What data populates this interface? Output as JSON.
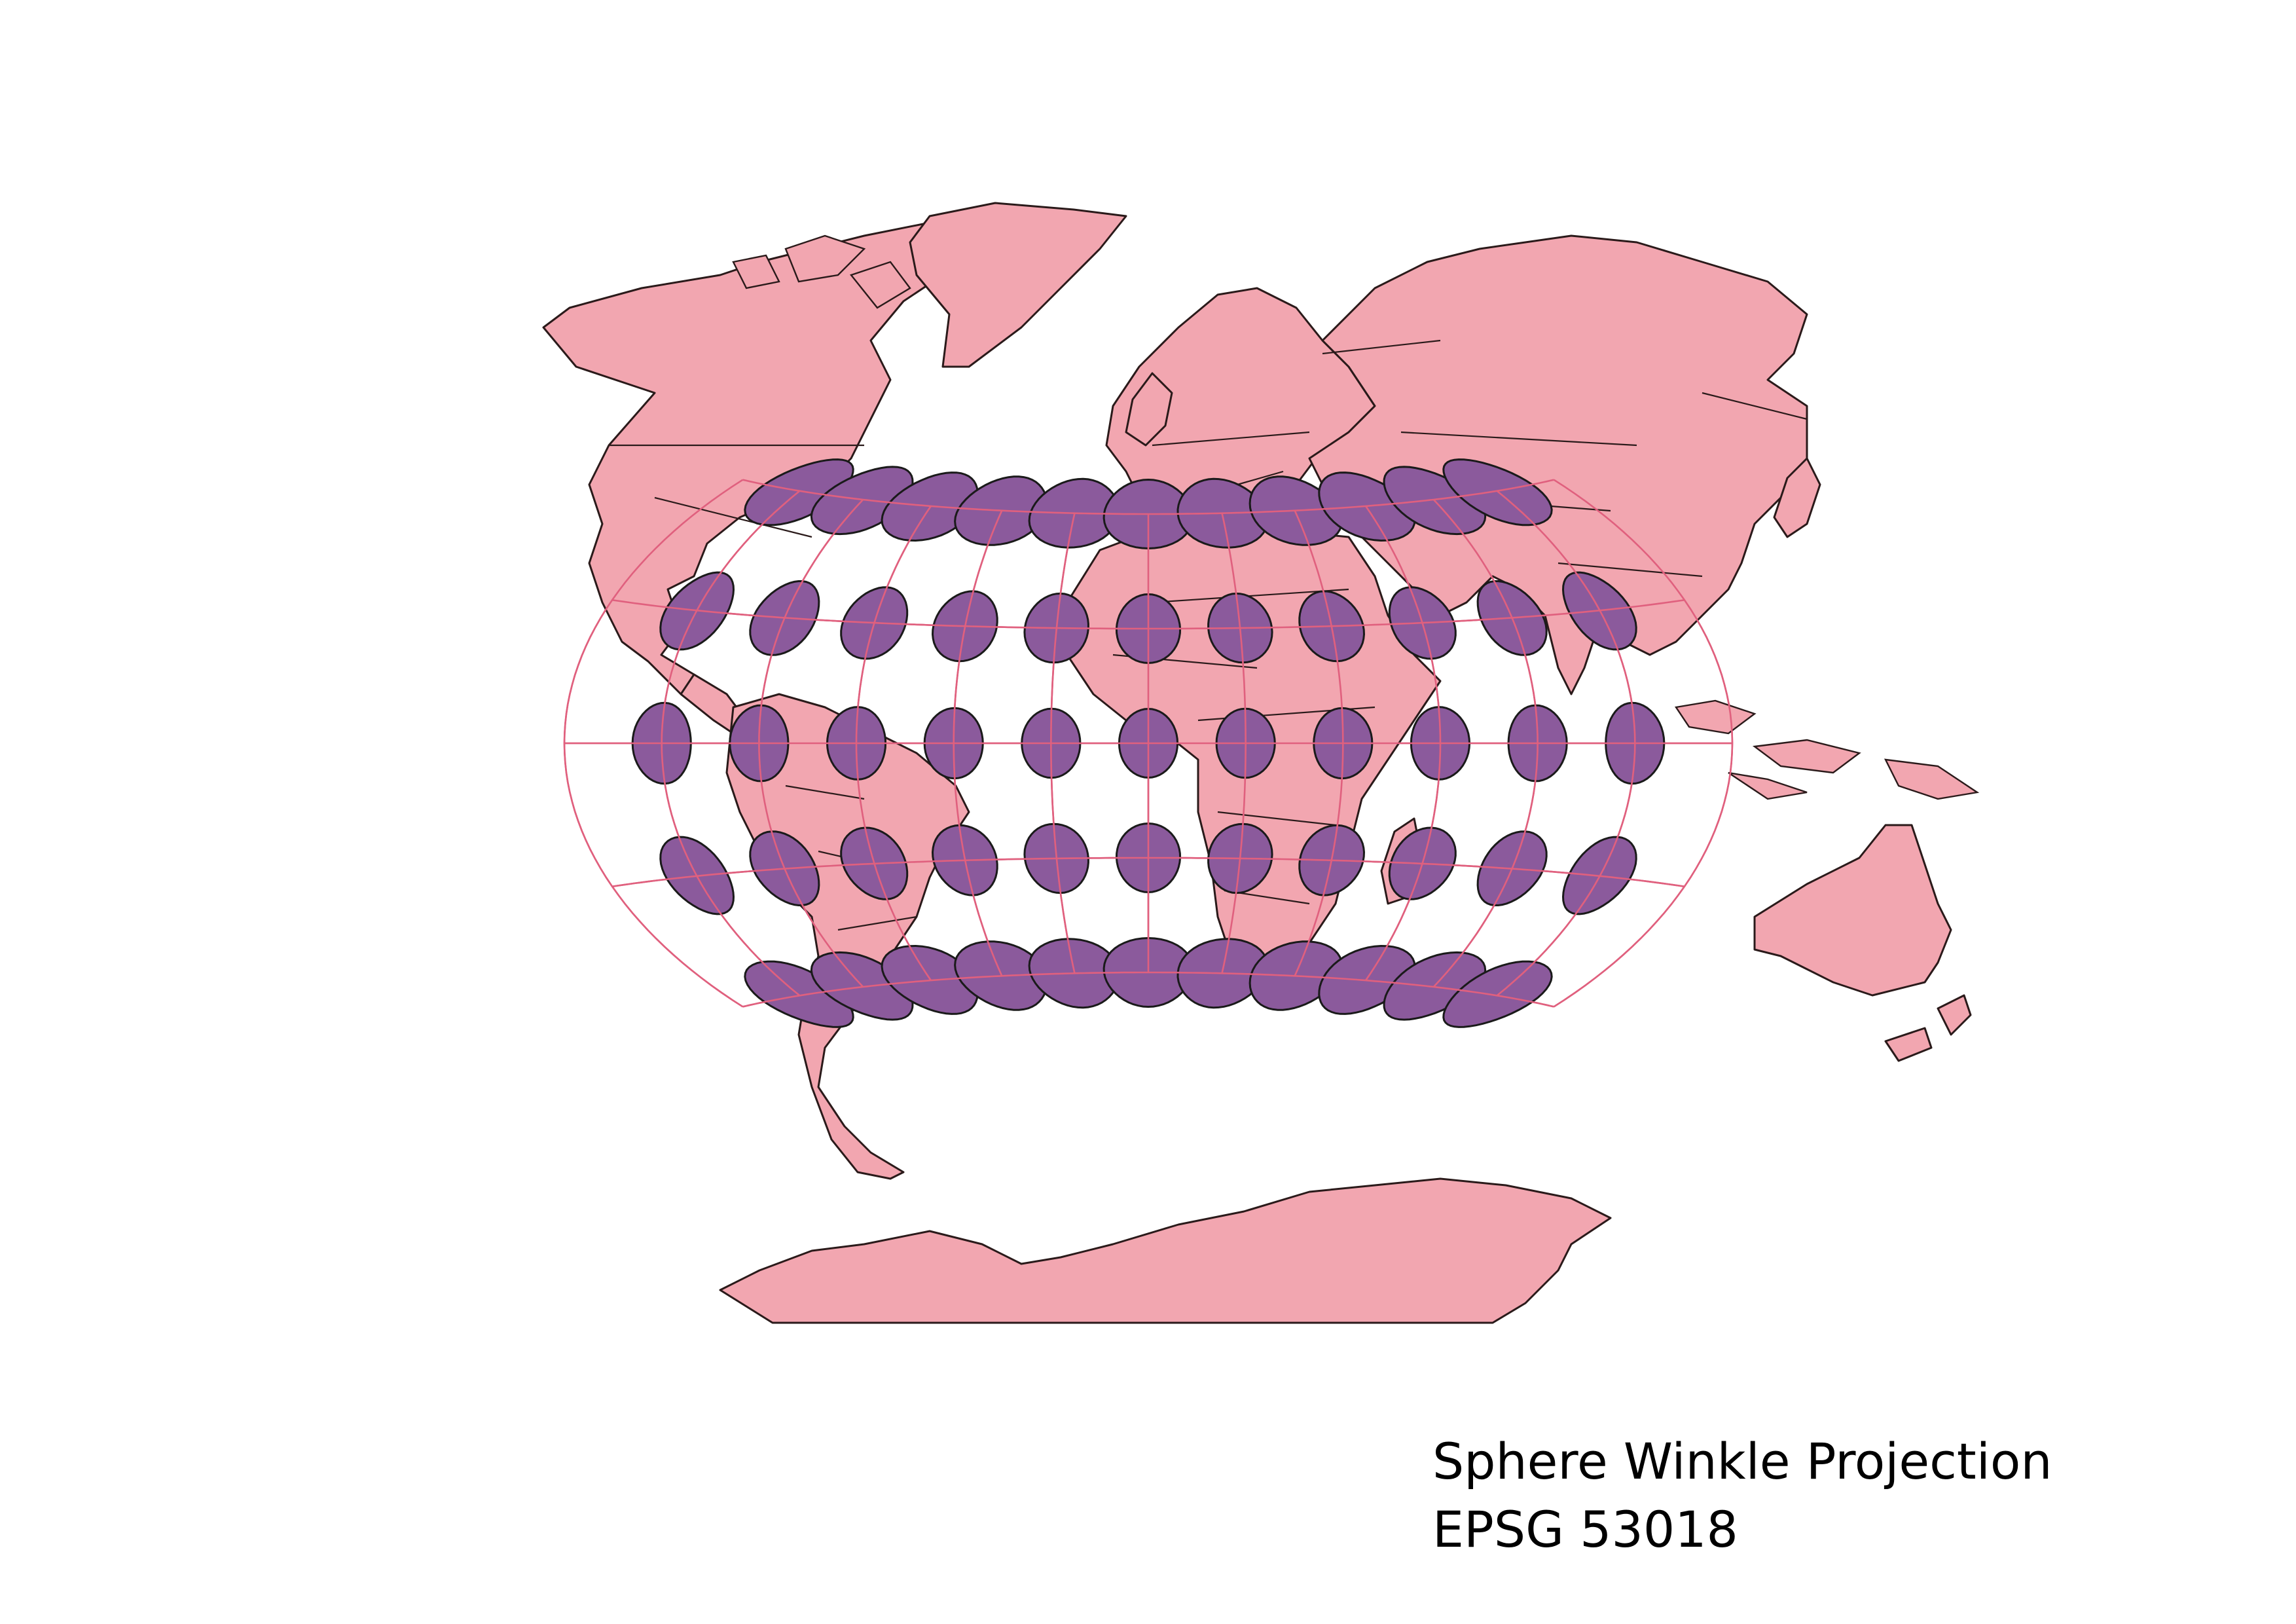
{
  "map": {
    "projection_title": "Sphere Winkle Projection",
    "epsg_label": "EPSG 53018",
    "colors": {
      "land": "#f2a6b0",
      "coastline": "#2a1a1a",
      "graticule": "#e0607e",
      "indicatrix": "#8b5a9c",
      "background": "#ffffff"
    },
    "graticule": {
      "latitudes_deg": [
        60,
        30,
        0,
        -30,
        -60
      ],
      "longitudes_deg": [
        -180,
        -150,
        -120,
        -90,
        -60,
        -30,
        0,
        30,
        60,
        90,
        120,
        150,
        180
      ]
    },
    "indicatrix_rows": [
      {
        "lat": 60,
        "count": 11
      },
      {
        "lat": 30,
        "count": 11
      },
      {
        "lat": 0,
        "count": 11
      },
      {
        "lat": -30,
        "count": 11
      },
      {
        "lat": -60,
        "count": 11
      }
    ],
    "landmasses": [
      "north-america",
      "south-america",
      "greenland",
      "europe",
      "africa",
      "asia",
      "australia",
      "antarctica",
      "madagascar",
      "new-zealand",
      "japan",
      "uk",
      "indonesia",
      "arctic-islands"
    ]
  }
}
